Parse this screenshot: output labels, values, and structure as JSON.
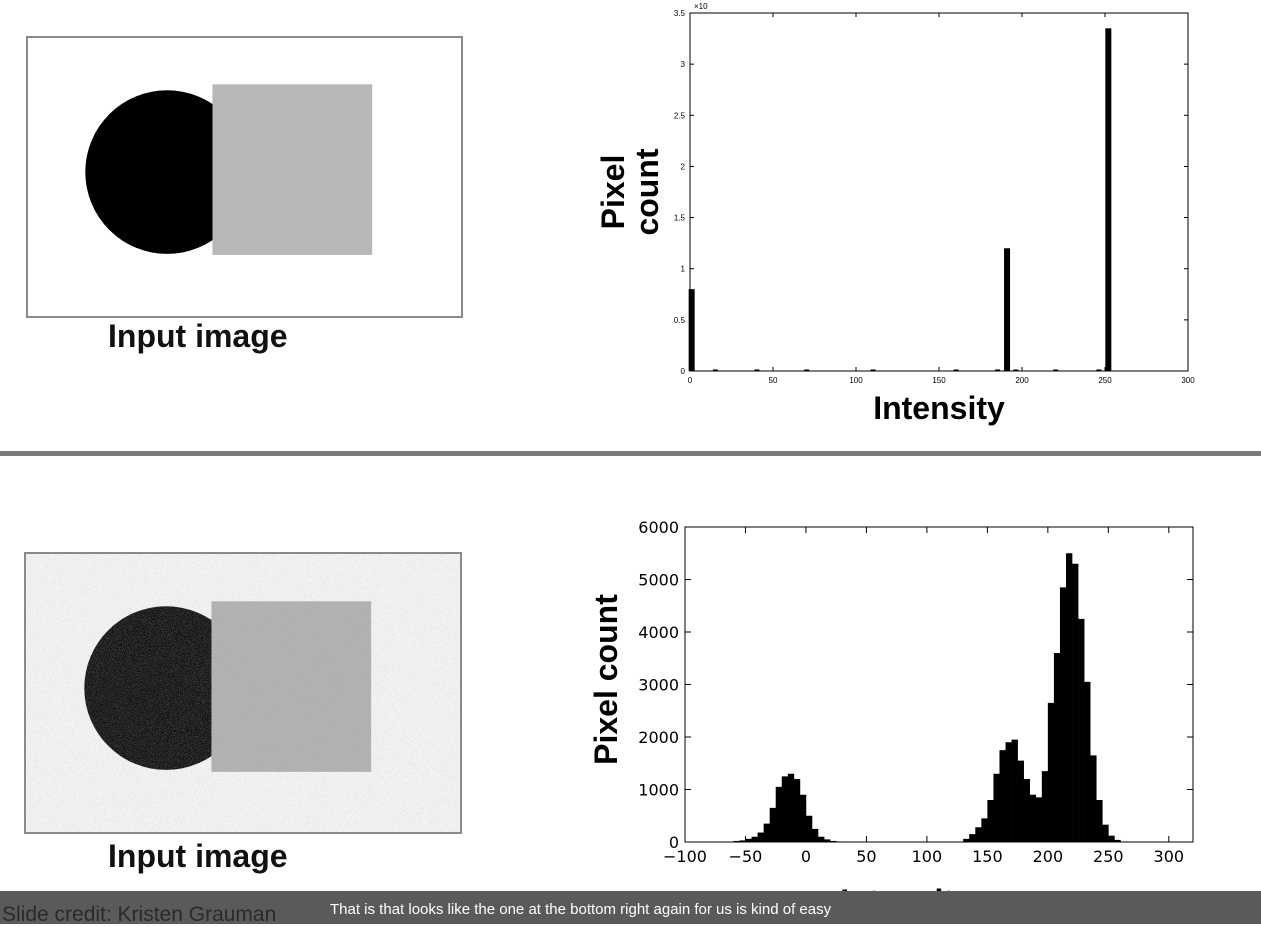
{
  "top_panel": {
    "caption": "Input image"
  },
  "bottom_panel": {
    "caption": "Input image"
  },
  "chart_data": [
    {
      "type": "bar",
      "xlabel": "Intensity",
      "ylabel": "Pixel count",
      "xlim": [
        0,
        300
      ],
      "ylim": [
        0,
        3.5
      ],
      "y_multiplier_label": "×10",
      "x_ticks": [
        "0",
        "50",
        "100",
        "150",
        "200",
        "250",
        "300"
      ],
      "y_ticks": [
        "0",
        "0.5",
        "1",
        "1.5",
        "2",
        "2.5",
        "3",
        "3.5"
      ],
      "bars": [
        {
          "x": 1,
          "y": 0.8
        },
        {
          "x": 191,
          "y": 1.2
        },
        {
          "x": 252,
          "y": 3.35
        }
      ]
    },
    {
      "type": "bar",
      "xlabel": "Intensity",
      "ylabel": "Pixel count",
      "xlim": [
        -100,
        320
      ],
      "ylim": [
        0,
        6000
      ],
      "x_ticks": [
        "−100",
        "−50",
        "0",
        "50",
        "100",
        "150",
        "200",
        "250",
        "300"
      ],
      "y_ticks": [
        "0",
        "1000",
        "2000",
        "3000",
        "4000",
        "5000",
        "6000"
      ],
      "bin_start": -60,
      "bin_width": 5,
      "values": [
        20,
        30,
        60,
        100,
        180,
        350,
        650,
        1050,
        1250,
        1300,
        1200,
        900,
        500,
        250,
        100,
        50,
        20,
        10,
        5,
        5,
        0,
        0,
        0,
        0,
        0,
        0,
        0,
        0,
        0,
        0,
        0,
        0,
        0,
        0,
        0,
        0,
        0,
        0,
        60,
        150,
        280,
        450,
        800,
        1300,
        1750,
        1900,
        1950,
        1550,
        1200,
        900,
        850,
        1350,
        2650,
        3600,
        4850,
        5500,
        5300,
        4250,
        3050,
        1650,
        800,
        330,
        120,
        40,
        10
      ]
    }
  ],
  "footer": {
    "credit": "Slide credit: Kristen Grauman",
    "subtitle": "That is that looks like the one at the bottom right again for us is kind of easy"
  }
}
